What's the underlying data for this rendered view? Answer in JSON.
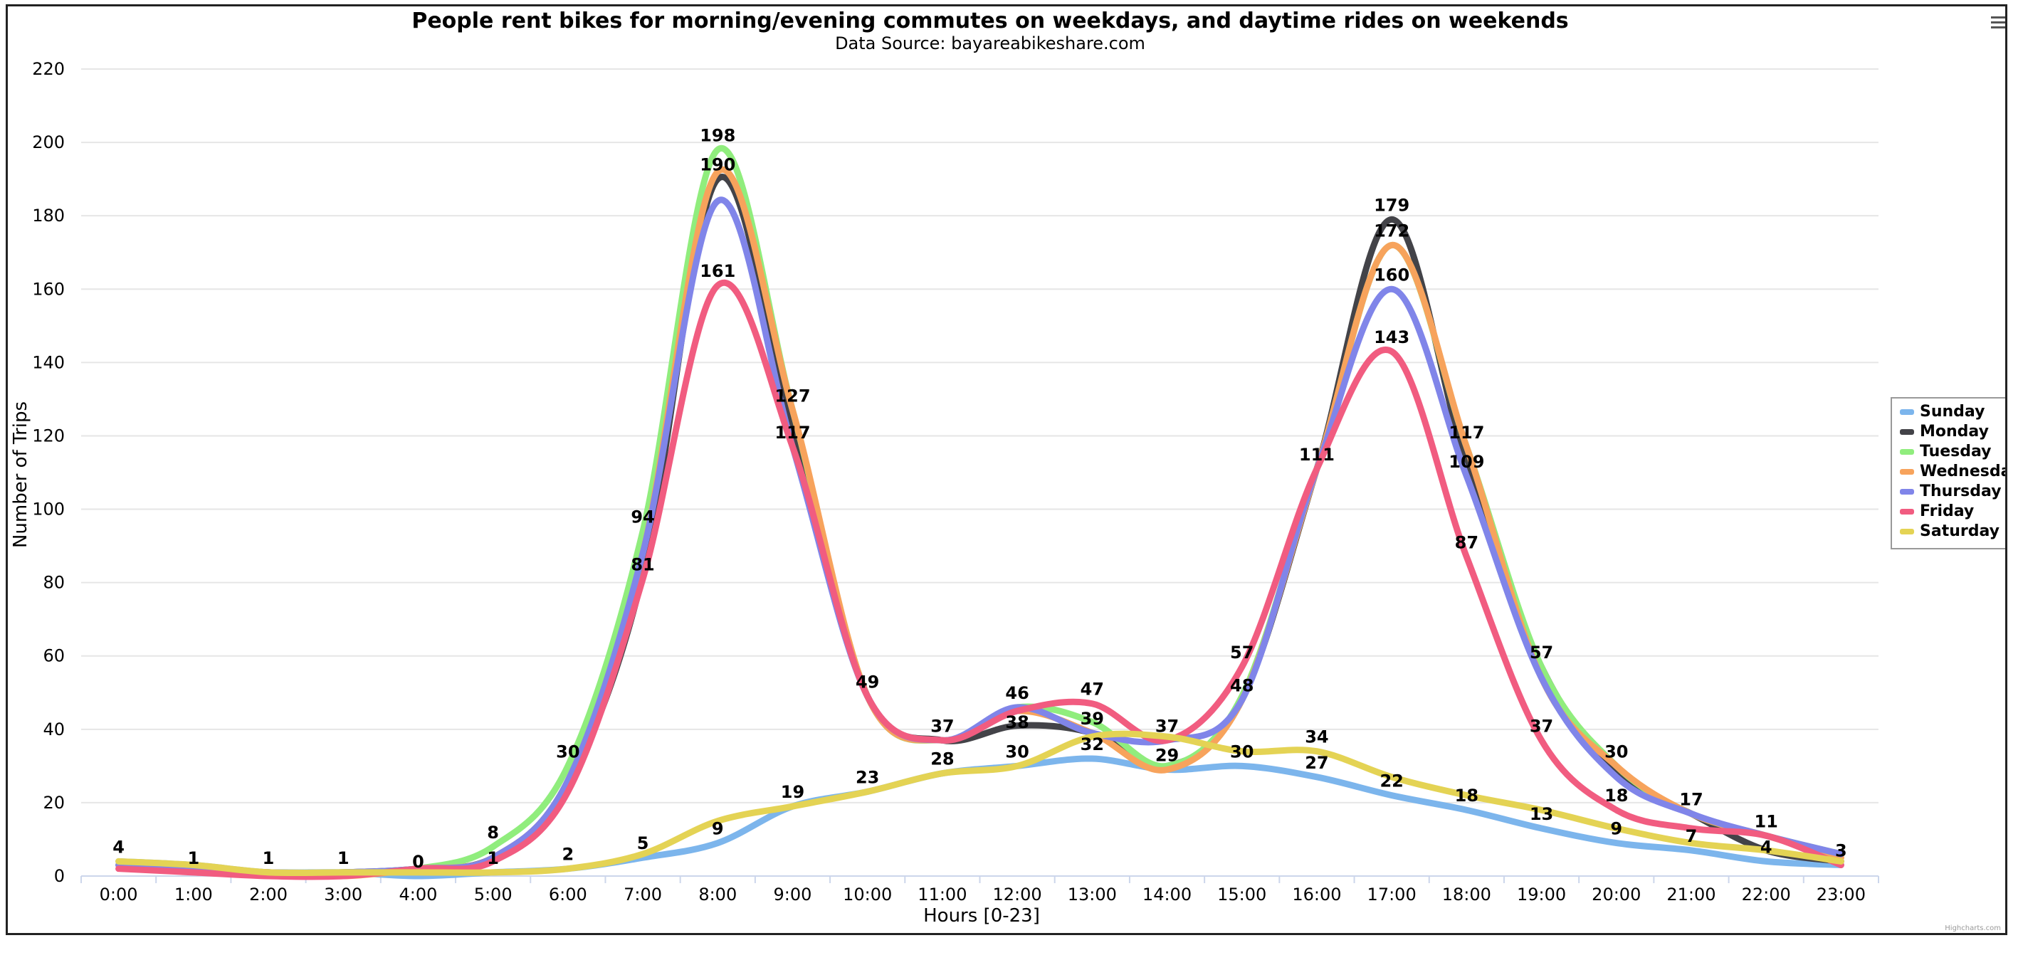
{
  "chart_data": {
    "type": "line",
    "title": "People rent bikes for morning/evening commutes on weekdays, and daytime rides on weekends",
    "subtitle": "Data Source: bayareabikeshare.com",
    "xlabel": "Hours [0-23]",
    "ylabel": "Number of Trips",
    "ylim": [
      0,
      220
    ],
    "yticks": [
      "0",
      "20",
      "40",
      "60",
      "80",
      "100",
      "120",
      "140",
      "160",
      "180",
      "200",
      "220"
    ],
    "categories": [
      "0:00",
      "1:00",
      "2:00",
      "3:00",
      "4:00",
      "5:00",
      "6:00",
      "7:00",
      "8:00",
      "9:00",
      "10:00",
      "11:00",
      "12:00",
      "13:00",
      "14:00",
      "15:00",
      "16:00",
      "17:00",
      "18:00",
      "19:00",
      "20:00",
      "21:00",
      "22:00",
      "23:00"
    ],
    "legend_position": "right",
    "series": [
      {
        "name": "Sunday",
        "color": "#7cb5ec",
        "values": [
          4,
          3,
          1,
          1,
          0,
          1,
          2,
          5,
          9,
          19,
          23,
          28,
          30,
          32,
          29,
          30,
          27,
          22,
          18,
          13,
          9,
          7,
          4,
          3
        ]
      },
      {
        "name": "Monday",
        "color": "#434348",
        "values": [
          3,
          2,
          1,
          1,
          2,
          5,
          25,
          82,
          190,
          122,
          49,
          37,
          41,
          39,
          30,
          48,
          111,
          179,
          112,
          57,
          28,
          17,
          7,
          4
        ]
      },
      {
        "name": "Tuesday",
        "color": "#90ed7d",
        "values": [
          3,
          2,
          1,
          1,
          2,
          8,
          30,
          94,
          198,
          127,
          49,
          37,
          46,
          42,
          30,
          49,
          111,
          172,
          117,
          57,
          30,
          17,
          11,
          6
        ]
      },
      {
        "name": "Wednesday",
        "color": "#f7a35c",
        "values": [
          3,
          2,
          1,
          0,
          2,
          5,
          26,
          88,
          192,
          127,
          49,
          37,
          45,
          39,
          29,
          48,
          111,
          172,
          117,
          54,
          30,
          17,
          11,
          5
        ]
      },
      {
        "name": "Thursday",
        "color": "#8085e9",
        "values": [
          3,
          2,
          1,
          1,
          2,
          5,
          26,
          88,
          184,
          117,
          49,
          37,
          46,
          39,
          37,
          48,
          111,
          160,
          109,
          54,
          27,
          17,
          11,
          6
        ]
      },
      {
        "name": "Friday",
        "color": "#f15c80",
        "values": [
          2,
          1,
          0,
          0,
          2,
          4,
          23,
          81,
          161,
          117,
          49,
          37,
          45,
          47,
          37,
          57,
          111,
          143,
          87,
          37,
          18,
          13,
          11,
          3
        ]
      },
      {
        "name": "Saturday",
        "color": "#e4d354",
        "values": [
          4,
          3,
          1,
          1,
          1,
          1,
          2,
          6,
          15,
          19,
          23,
          28,
          30,
          38,
          38,
          34,
          34,
          27,
          22,
          18,
          13,
          9,
          7,
          4
        ]
      }
    ],
    "data_labels": [
      {
        "cat": 0,
        "value": "4"
      },
      {
        "cat": 1,
        "value": "1"
      },
      {
        "cat": 2,
        "value": "1"
      },
      {
        "cat": 3,
        "value": "1"
      },
      {
        "cat": 4,
        "value": "0"
      },
      {
        "cat": 5,
        "value": "8"
      },
      {
        "cat": 5,
        "value": "1"
      },
      {
        "cat": 6,
        "value": "30"
      },
      {
        "cat": 6,
        "value": "2"
      },
      {
        "cat": 7,
        "value": "94"
      },
      {
        "cat": 7,
        "value": "81"
      },
      {
        "cat": 7,
        "value": "5"
      },
      {
        "cat": 8,
        "value": "198"
      },
      {
        "cat": 8,
        "value": "190"
      },
      {
        "cat": 8,
        "value": "161"
      },
      {
        "cat": 8,
        "value": "9"
      },
      {
        "cat": 9,
        "value": "127"
      },
      {
        "cat": 9,
        "value": "117"
      },
      {
        "cat": 9,
        "value": "19"
      },
      {
        "cat": 10,
        "value": "49"
      },
      {
        "cat": 10,
        "value": "23"
      },
      {
        "cat": 11,
        "value": "37"
      },
      {
        "cat": 11,
        "value": "28"
      },
      {
        "cat": 12,
        "value": "46"
      },
      {
        "cat": 12,
        "value": "38"
      },
      {
        "cat": 12,
        "value": "30"
      },
      {
        "cat": 13,
        "value": "47"
      },
      {
        "cat": 13,
        "value": "39"
      },
      {
        "cat": 13,
        "value": "32"
      },
      {
        "cat": 14,
        "value": "37"
      },
      {
        "cat": 14,
        "value": "29"
      },
      {
        "cat": 15,
        "value": "57"
      },
      {
        "cat": 15,
        "value": "48"
      },
      {
        "cat": 15,
        "value": "30"
      },
      {
        "cat": 16,
        "value": "111"
      },
      {
        "cat": 16,
        "value": "34"
      },
      {
        "cat": 16,
        "value": "27"
      },
      {
        "cat": 17,
        "value": "179"
      },
      {
        "cat": 17,
        "value": "172"
      },
      {
        "cat": 17,
        "value": "160"
      },
      {
        "cat": 17,
        "value": "143"
      },
      {
        "cat": 17,
        "value": "22"
      },
      {
        "cat": 18,
        "value": "117"
      },
      {
        "cat": 18,
        "value": "109"
      },
      {
        "cat": 18,
        "value": "87"
      },
      {
        "cat": 18,
        "value": "18"
      },
      {
        "cat": 19,
        "value": "57"
      },
      {
        "cat": 19,
        "value": "37"
      },
      {
        "cat": 19,
        "value": "13"
      },
      {
        "cat": 20,
        "value": "30"
      },
      {
        "cat": 20,
        "value": "18"
      },
      {
        "cat": 20,
        "value": "9"
      },
      {
        "cat": 21,
        "value": "17"
      },
      {
        "cat": 21,
        "value": "7"
      },
      {
        "cat": 22,
        "value": "11"
      },
      {
        "cat": 22,
        "value": "4"
      },
      {
        "cat": 23,
        "value": "3"
      }
    ]
  },
  "menu_icon": "hamburger-menu-icon",
  "credits": "Highcharts.com"
}
